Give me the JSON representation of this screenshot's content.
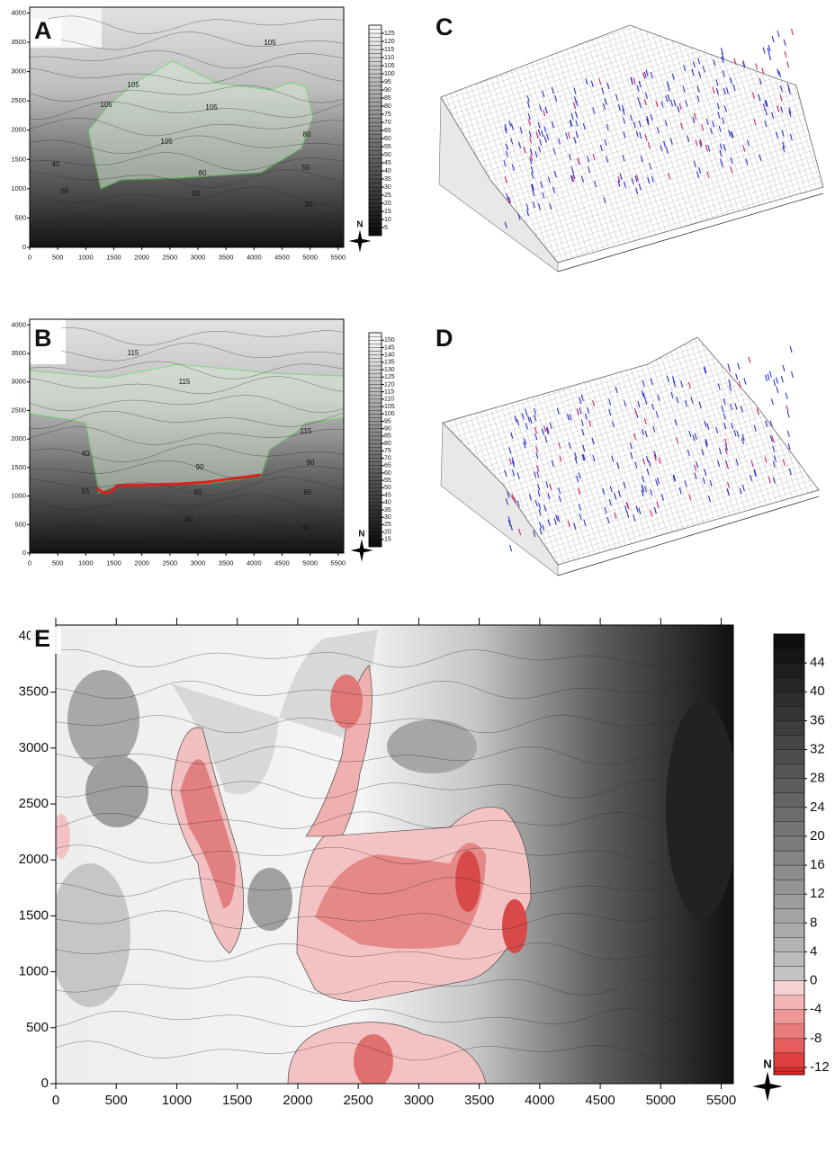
{
  "chart_data": [
    {
      "type": "contour",
      "panel_label": "A",
      "xlim": [
        0,
        5600
      ],
      "ylim": [
        0,
        4100
      ],
      "xticks": [
        0,
        500,
        1000,
        1500,
        2000,
        2500,
        3000,
        3500,
        4000,
        4500,
        5000,
        5500
      ],
      "yticks": [
        0,
        500,
        1000,
        1500,
        2000,
        2500,
        3000,
        3500,
        4000
      ],
      "colorbar_lim": [
        0,
        130
      ],
      "colorbar_ticks": [
        5,
        10,
        15,
        20,
        25,
        30,
        35,
        40,
        45,
        50,
        55,
        60,
        65,
        70,
        75,
        80,
        85,
        90,
        95,
        100,
        105,
        110,
        115,
        120,
        125
      ],
      "contour_labels": [
        "105",
        "105",
        "105",
        "105",
        "105",
        "80",
        "45",
        "80",
        "55",
        "65",
        "55",
        "30"
      ],
      "north_label": "N"
    },
    {
      "type": "contour",
      "panel_label": "B",
      "xlim": [
        0,
        5600
      ],
      "ylim": [
        0,
        4100
      ],
      "xticks": [
        0,
        500,
        1000,
        1500,
        2000,
        2500,
        3000,
        3500,
        4000,
        4500,
        5000,
        5500
      ],
      "yticks": [
        0,
        500,
        1000,
        1500,
        2000,
        2500,
        3000,
        3500,
        4000
      ],
      "colorbar_lim": [
        10,
        155
      ],
      "colorbar_ticks": [
        15,
        20,
        25,
        30,
        35,
        40,
        45,
        50,
        55,
        60,
        65,
        70,
        75,
        80,
        85,
        90,
        95,
        100,
        105,
        110,
        115,
        120,
        125,
        130,
        135,
        140,
        145,
        150
      ],
      "contour_labels": [
        "115",
        "115",
        "115",
        "40",
        "90",
        "90",
        "55",
        "65",
        "65",
        "40",
        "40"
      ],
      "north_label": "N"
    },
    {
      "type": "surface3d",
      "panel_label": "C"
    },
    {
      "type": "surface3d",
      "panel_label": "D"
    },
    {
      "type": "contour",
      "panel_label": "E",
      "xlim": [
        0,
        5600
      ],
      "ylim": [
        0,
        4100
      ],
      "xticks": [
        0,
        500,
        1000,
        1500,
        2000,
        2500,
        3000,
        3500,
        4000,
        4500,
        5000,
        5500
      ],
      "yticks": [
        0,
        500,
        1000,
        1500,
        2000,
        2500,
        3000,
        3500,
        4000
      ],
      "colorbar_lim": [
        -13,
        48
      ],
      "colorbar_ticks": [
        -12,
        -8,
        -4,
        0,
        4,
        8,
        12,
        16,
        20,
        24,
        28,
        32,
        36,
        40,
        44
      ],
      "north_label": "N"
    }
  ]
}
